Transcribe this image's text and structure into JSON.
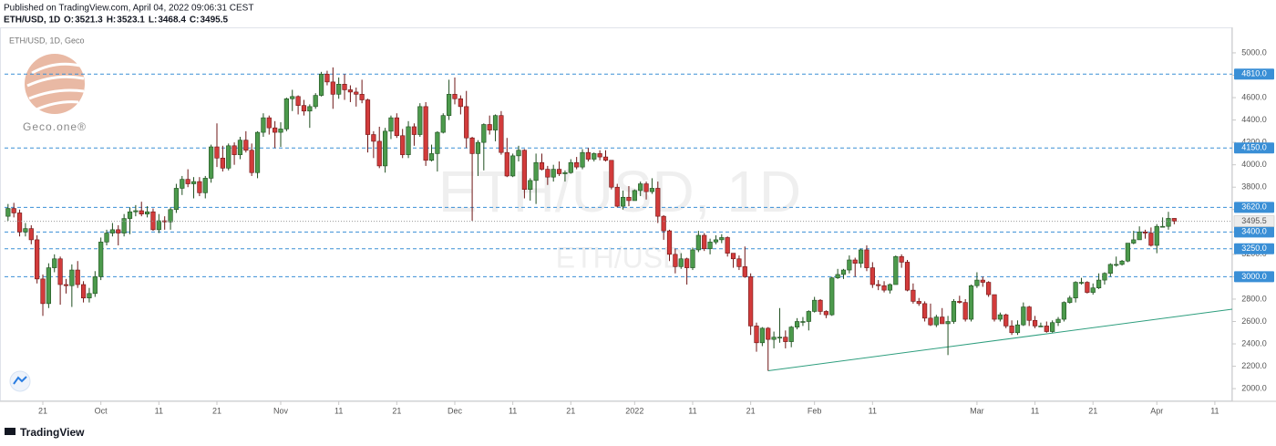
{
  "header": {
    "published": "Published on TradingView.com, April 04, 2022 09:06:31 CEST",
    "symbol": "ETH/USD, 1D",
    "ohlc_labels": [
      "O:",
      "H:",
      "L:",
      "C:"
    ]
  },
  "chart_data": {
    "type": "candlestick",
    "legend": "ETH/USD, 1D, Geco",
    "watermark": "ETH/USD, 1D",
    "watermark_sub": "ETH/USD",
    "logo": "Geco.one®",
    "up_color": "#4c9a4c",
    "up_edge": "#1f4f1f",
    "down_color": "#d23b3b",
    "down_edge": "#6e1515",
    "level_color": "#3a8fd6",
    "price_line_color": "#9a9a9a",
    "xlim": [
      -0.6,
      211
    ],
    "ylim": [
      1887,
      5187
    ],
    "xticks": [
      {
        "value": 6,
        "label": "21"
      },
      {
        "value": 16,
        "label": "Oct"
      },
      {
        "value": 26,
        "label": "11"
      },
      {
        "value": 36,
        "label": "21"
      },
      {
        "value": 47,
        "label": "Nov"
      },
      {
        "value": 57,
        "label": "11"
      },
      {
        "value": 67,
        "label": "21"
      },
      {
        "value": 77,
        "label": "Dec"
      },
      {
        "value": 87,
        "label": "11"
      },
      {
        "value": 97,
        "label": "21"
      },
      {
        "value": 108,
        "label": "2022"
      },
      {
        "value": 118,
        "label": "11"
      },
      {
        "value": 128,
        "label": "21"
      },
      {
        "value": 139,
        "label": "Feb"
      },
      {
        "value": 149,
        "label": "11"
      },
      {
        "value": 167,
        "label": "Mar"
      },
      {
        "value": 177,
        "label": "11"
      },
      {
        "value": 187,
        "label": "21"
      },
      {
        "value": 198,
        "label": "Apr"
      },
      {
        "value": 208,
        "label": "11"
      }
    ],
    "yticks": [
      {
        "value": 2000,
        "label": "2000.0"
      },
      {
        "value": 2200,
        "label": "2200.0"
      },
      {
        "value": 2400,
        "label": "2400.0"
      },
      {
        "value": 2600,
        "label": "2600.0"
      },
      {
        "value": 2800,
        "label": "2800.0"
      },
      {
        "value": 3000,
        "label": "3000.0"
      },
      {
        "value": 3200,
        "label": "3200.0"
      },
      {
        "value": 3400,
        "label": "3400.0"
      },
      {
        "value": 3600,
        "label": "3600.0"
      },
      {
        "value": 3800,
        "label": "3800.0"
      },
      {
        "value": 4000,
        "label": "4000.0"
      },
      {
        "value": 4200,
        "label": "4200.0"
      },
      {
        "value": 4400,
        "label": "4400.0"
      },
      {
        "value": 4600,
        "label": "4600.0"
      },
      {
        "value": 4800,
        "label": "4800.0"
      },
      {
        "value": 5000,
        "label": "5000.0"
      }
    ],
    "levels": [
      {
        "value": 4810,
        "label": "4810.0"
      },
      {
        "value": 4150,
        "label": "4150.0"
      },
      {
        "value": 3620,
        "label": "3620.0"
      },
      {
        "value": 3400,
        "label": "3400.0"
      },
      {
        "value": 3250,
        "label": "3250.0"
      },
      {
        "value": 3000,
        "label": "3000.0"
      }
    ],
    "trendline": {
      "x": [
        131,
        211
      ],
      "y": [
        2160,
        2710
      ],
      "color": "#2e9e7e"
    },
    "candles": [
      [
        3540,
        3650,
        3500,
        3610
      ],
      [
        3610,
        3660,
        3530,
        3570
      ],
      [
        3570,
        3600,
        3360,
        3400
      ],
      [
        3400,
        3480,
        3360,
        3430
      ],
      [
        3430,
        3460,
        3290,
        3330
      ],
      [
        3330,
        3370,
        2940,
        2980
      ],
      [
        2980,
        3020,
        2650,
        2760
      ],
      [
        2760,
        3120,
        2720,
        3080
      ],
      [
        3080,
        3200,
        3040,
        3160
      ],
      [
        3160,
        3180,
        2750,
        2930
      ],
      [
        2930,
        2980,
        2850,
        2920
      ],
      [
        2920,
        3110,
        2730,
        3060
      ],
      [
        3060,
        3140,
        2900,
        2930
      ],
      [
        2930,
        2960,
        2770,
        2810
      ],
      [
        2810,
        2900,
        2770,
        2850
      ],
      [
        2850,
        3050,
        2820,
        3000
      ],
      [
        3000,
        3350,
        2970,
        3310
      ],
      [
        3310,
        3420,
        3280,
        3390
      ],
      [
        3390,
        3480,
        3360,
        3420
      ],
      [
        3420,
        3460,
        3280,
        3390
      ],
      [
        3390,
        3560,
        3360,
        3520
      ],
      [
        3520,
        3620,
        3380,
        3580
      ],
      [
        3580,
        3640,
        3540,
        3590
      ],
      [
        3590,
        3670,
        3540,
        3560
      ],
      [
        3560,
        3630,
        3530,
        3580
      ],
      [
        3580,
        3610,
        3410,
        3420
      ],
      [
        3420,
        3560,
        3390,
        3500
      ],
      [
        3500,
        3540,
        3420,
        3490
      ],
      [
        3490,
        3620,
        3420,
        3600
      ],
      [
        3600,
        3830,
        3570,
        3790
      ],
      [
        3790,
        3900,
        3730,
        3870
      ],
      [
        3870,
        3960,
        3800,
        3830
      ],
      [
        3830,
        3890,
        3700,
        3850
      ],
      [
        3850,
        3890,
        3720,
        3750
      ],
      [
        3750,
        3900,
        3700,
        3880
      ],
      [
        3880,
        4180,
        3840,
        4160
      ],
      [
        4160,
        4370,
        3980,
        4060
      ],
      [
        4060,
        4170,
        3940,
        3970
      ],
      [
        3970,
        4190,
        3950,
        4170
      ],
      [
        4170,
        4200,
        4000,
        4090
      ],
      [
        4090,
        4250,
        4050,
        4220
      ],
      [
        4220,
        4300,
        4110,
        4130
      ],
      [
        4130,
        4190,
        3900,
        3930
      ],
      [
        3930,
        4300,
        3880,
        4290
      ],
      [
        4290,
        4460,
        4250,
        4420
      ],
      [
        4420,
        4440,
        4270,
        4330
      ],
      [
        4330,
        4390,
        4150,
        4290
      ],
      [
        4290,
        4380,
        4160,
        4320
      ],
      [
        4320,
        4600,
        4300,
        4590
      ],
      [
        4590,
        4670,
        4480,
        4610
      ],
      [
        4610,
        4620,
        4450,
        4530
      ],
      [
        4530,
        4580,
        4440,
        4480
      ],
      [
        4480,
        4540,
        4330,
        4520
      ],
      [
        4520,
        4640,
        4500,
        4620
      ],
      [
        4620,
        4830,
        4610,
        4810
      ],
      [
        4810,
        4840,
        4710,
        4740
      ],
      [
        4740,
        4870,
        4500,
        4630
      ],
      [
        4630,
        4780,
        4590,
        4720
      ],
      [
        4720,
        4810,
        4580,
        4670
      ],
      [
        4670,
        4710,
        4560,
        4650
      ],
      [
        4650,
        4690,
        4520,
        4630
      ],
      [
        4630,
        4760,
        4550,
        4580
      ],
      [
        4580,
        4590,
        4110,
        4270
      ],
      [
        4270,
        4300,
        4060,
        4210
      ],
      [
        4210,
        4340,
        3970,
        3990
      ],
      [
        3990,
        4330,
        3930,
        4300
      ],
      [
        4300,
        4440,
        4230,
        4420
      ],
      [
        4420,
        4460,
        4240,
        4260
      ],
      [
        4260,
        4320,
        4060,
        4090
      ],
      [
        4090,
        4390,
        4060,
        4340
      ],
      [
        4340,
        4370,
        4170,
        4270
      ],
      [
        4270,
        4550,
        4250,
        4520
      ],
      [
        4520,
        4560,
        3990,
        4040
      ],
      [
        4040,
        4180,
        4030,
        4100
      ],
      [
        4100,
        4300,
        3940,
        4290
      ],
      [
        4290,
        4460,
        4280,
        4440
      ],
      [
        4440,
        4760,
        4400,
        4630
      ],
      [
        4630,
        4780,
        4540,
        4590
      ],
      [
        4590,
        4620,
        4450,
        4520
      ],
      [
        4520,
        4660,
        4150,
        4240
      ],
      [
        4240,
        4250,
        3500,
        4100
      ],
      [
        4100,
        4220,
        3900,
        4200
      ],
      [
        4200,
        4370,
        3950,
        4360
      ],
      [
        4360,
        4440,
        4270,
        4310
      ],
      [
        4310,
        4450,
        4210,
        4440
      ],
      [
        4440,
        4480,
        4090,
        4110
      ],
      [
        4110,
        4240,
        3890,
        3900
      ],
      [
        3900,
        4100,
        3890,
        4080
      ],
      [
        4080,
        4170,
        4030,
        4130
      ],
      [
        4130,
        4140,
        3700,
        3780
      ],
      [
        3780,
        3880,
        3680,
        3860
      ],
      [
        3860,
        4100,
        3650,
        4020
      ],
      [
        4020,
        4100,
        3950,
        3960
      ],
      [
        3960,
        3990,
        3820,
        3890
      ],
      [
        3890,
        4000,
        3850,
        3960
      ],
      [
        3960,
        4030,
        3900,
        3920
      ],
      [
        3920,
        3950,
        3850,
        3930
      ],
      [
        3930,
        4050,
        3920,
        4020
      ],
      [
        4020,
        4070,
        3960,
        3980
      ],
      [
        3980,
        4140,
        3960,
        4110
      ],
      [
        4110,
        4150,
        4030,
        4050
      ],
      [
        4050,
        4110,
        4030,
        4100
      ],
      [
        4100,
        4130,
        4040,
        4070
      ],
      [
        4070,
        4130,
        4030,
        4040
      ],
      [
        4040,
        4040,
        3780,
        3800
      ],
      [
        3800,
        3830,
        3620,
        3630
      ],
      [
        3630,
        3770,
        3600,
        3710
      ],
      [
        3710,
        3810,
        3630,
        3680
      ],
      [
        3680,
        3780,
        3680,
        3770
      ],
      [
        3770,
        3850,
        3720,
        3830
      ],
      [
        3830,
        3850,
        3690,
        3760
      ],
      [
        3760,
        3880,
        3740,
        3790
      ],
      [
        3790,
        3850,
        3480,
        3540
      ],
      [
        3540,
        3550,
        3330,
        3410
      ],
      [
        3410,
        3420,
        3140,
        3200
      ],
      [
        3200,
        3250,
        3030,
        3090
      ],
      [
        3090,
        3210,
        3070,
        3160
      ],
      [
        3160,
        3170,
        2930,
        3080
      ],
      [
        3080,
        3260,
        3060,
        3240
      ],
      [
        3240,
        3410,
        3220,
        3370
      ],
      [
        3370,
        3390,
        3230,
        3250
      ],
      [
        3250,
        3340,
        3200,
        3310
      ],
      [
        3310,
        3370,
        3290,
        3330
      ],
      [
        3330,
        3380,
        3300,
        3350
      ],
      [
        3350,
        3360,
        3180,
        3210
      ],
      [
        3210,
        3210,
        3080,
        3160
      ],
      [
        3160,
        3190,
        3060,
        3090
      ],
      [
        3090,
        3270,
        2990,
        3000
      ],
      [
        3000,
        3030,
        2480,
        2560
      ],
      [
        2560,
        2590,
        2330,
        2410
      ],
      [
        2410,
        2550,
        2380,
        2540
      ],
      [
        2540,
        2550,
        2160,
        2440
      ],
      [
        2440,
        2510,
        2360,
        2460
      ],
      [
        2460,
        2720,
        2410,
        2460
      ],
      [
        2460,
        2520,
        2360,
        2420
      ],
      [
        2420,
        2560,
        2370,
        2550
      ],
      [
        2550,
        2630,
        2530,
        2600
      ],
      [
        2600,
        2640,
        2560,
        2600
      ],
      [
        2600,
        2700,
        2520,
        2690
      ],
      [
        2690,
        2820,
        2680,
        2790
      ],
      [
        2790,
        2800,
        2660,
        2690
      ],
      [
        2690,
        2700,
        2630,
        2660
      ],
      [
        2660,
        3000,
        2650,
        2990
      ],
      [
        2990,
        3070,
        2980,
        3020
      ],
      [
        3020,
        3070,
        2980,
        3060
      ],
      [
        3060,
        3190,
        3030,
        3150
      ],
      [
        3150,
        3170,
        3000,
        3120
      ],
      [
        3120,
        3250,
        3080,
        3240
      ],
      [
        3240,
        3280,
        3050,
        3080
      ],
      [
        3080,
        3130,
        2900,
        2930
      ],
      [
        2930,
        2970,
        2880,
        2920
      ],
      [
        2920,
        2960,
        2860,
        2880
      ],
      [
        2880,
        2940,
        2850,
        2930
      ],
      [
        2930,
        3190,
        2930,
        3180
      ],
      [
        3180,
        3200,
        3080,
        3130
      ],
      [
        3130,
        3150,
        2870,
        2880
      ],
      [
        2880,
        2940,
        2760,
        2780
      ],
      [
        2780,
        2810,
        2740,
        2760
      ],
      [
        2760,
        2780,
        2600,
        2630
      ],
      [
        2630,
        2760,
        2560,
        2570
      ],
      [
        2570,
        2660,
        2550,
        2640
      ],
      [
        2640,
        2720,
        2580,
        2580
      ],
      [
        2580,
        2650,
        2300,
        2600
      ],
      [
        2600,
        2800,
        2580,
        2780
      ],
      [
        2780,
        2830,
        2760,
        2770
      ],
      [
        2770,
        2800,
        2600,
        2620
      ],
      [
        2620,
        2930,
        2600,
        2920
      ],
      [
        2920,
        3040,
        2900,
        2970
      ],
      [
        2970,
        3000,
        2910,
        2950
      ],
      [
        2950,
        2960,
        2820,
        2840
      ],
      [
        2840,
        2840,
        2600,
        2620
      ],
      [
        2620,
        2680,
        2600,
        2660
      ],
      [
        2660,
        2670,
        2540,
        2560
      ],
      [
        2560,
        2610,
        2480,
        2500
      ],
      [
        2500,
        2610,
        2480,
        2570
      ],
      [
        2570,
        2770,
        2560,
        2730
      ],
      [
        2730,
        2740,
        2560,
        2610
      ],
      [
        2610,
        2650,
        2540,
        2560
      ],
      [
        2560,
        2590,
        2550,
        2560
      ],
      [
        2560,
        2600,
        2500,
        2510
      ],
      [
        2510,
        2610,
        2500,
        2590
      ],
      [
        2590,
        2640,
        2560,
        2620
      ],
      [
        2620,
        2780,
        2600,
        2770
      ],
      [
        2770,
        2830,
        2760,
        2810
      ],
      [
        2810,
        2960,
        2770,
        2950
      ],
      [
        2950,
        2990,
        2930,
        2950
      ],
      [
        2950,
        2960,
        2850,
        2860
      ],
      [
        2860,
        2940,
        2840,
        2900
      ],
      [
        2900,
        3030,
        2890,
        2970
      ],
      [
        2970,
        3040,
        2930,
        3030
      ],
      [
        3030,
        3120,
        3000,
        3110
      ],
      [
        3110,
        3180,
        3090,
        3110
      ],
      [
        3110,
        3150,
        3100,
        3140
      ],
      [
        3140,
        3300,
        3130,
        3300
      ],
      [
        3300,
        3410,
        3290,
        3330
      ],
      [
        3330,
        3450,
        3330,
        3400
      ],
      [
        3400,
        3420,
        3340,
        3390
      ],
      [
        3390,
        3440,
        3270,
        3280
      ],
      [
        3280,
        3470,
        3210,
        3450
      ],
      [
        3450,
        3530,
        3440,
        3450
      ],
      [
        3450,
        3580,
        3420,
        3521.3
      ],
      [
        3521.3,
        3523.1,
        3468.4,
        3495.5
      ]
    ]
  },
  "footer": {
    "brand": "TradingView"
  }
}
